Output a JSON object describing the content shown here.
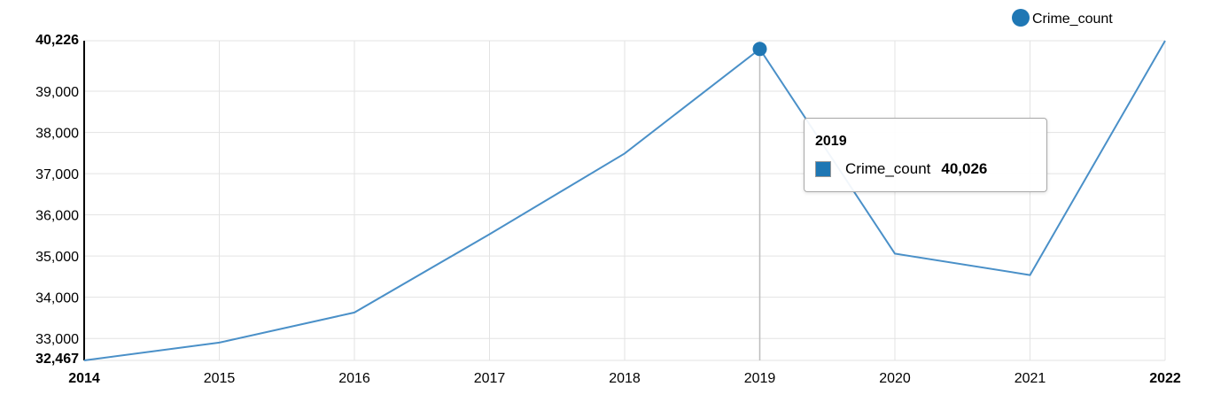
{
  "chart_data": {
    "type": "line",
    "x": [
      "2014",
      "2015",
      "2016",
      "2017",
      "2018",
      "2019",
      "2020",
      "2021",
      "2022"
    ],
    "series": [
      {
        "name": "Crime_count",
        "values": [
          32467,
          32900,
          33630,
          35530,
          37490,
          40026,
          35060,
          34540,
          40226
        ]
      }
    ],
    "y_ticks": [
      33000,
      34000,
      35000,
      36000,
      37000,
      38000,
      39000
    ],
    "y_tick_labels": [
      "33,000",
      "34,000",
      "35,000",
      "36,000",
      "37,000",
      "38,000",
      "39,000"
    ],
    "y_min_label": "32,467",
    "y_max_label": "40,226",
    "ylim": [
      32467,
      40226
    ],
    "grid": true,
    "legend": {
      "position": "top-right",
      "entries": [
        "Crime_count"
      ]
    },
    "color": "#1f77b4",
    "line_color": "#4a90c8",
    "highlighted_index": 5
  },
  "tooltip": {
    "title": "2019",
    "series_name": "Crime_count",
    "value": "40,026"
  }
}
